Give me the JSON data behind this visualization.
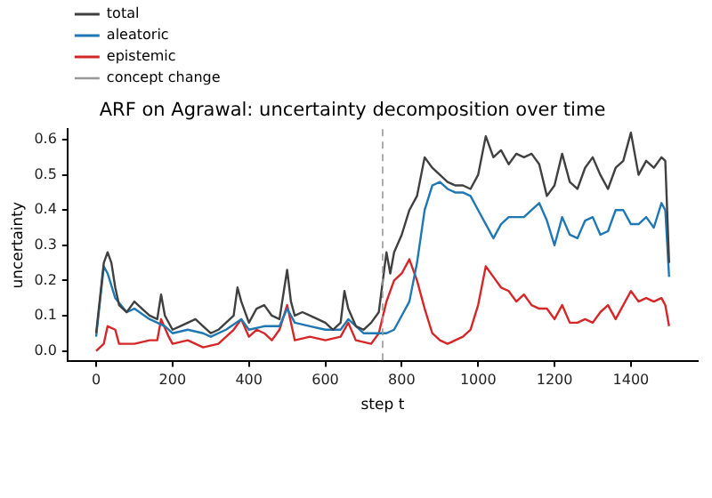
{
  "chart_data": {
    "type": "line",
    "title": "ARF on Agrawal: uncertainty decomposition over time",
    "xlabel": "step t",
    "ylabel": "uncertainty",
    "xlim": [
      -75,
      1575
    ],
    "xticks": [
      0,
      200,
      400,
      600,
      800,
      1000,
      1200,
      1400
    ],
    "ylim": [
      -0.03,
      0.63
    ],
    "yticks": [
      {
        "value": 0,
        "label": "0.0"
      },
      {
        "value": 0.1,
        "label": "0.1"
      },
      {
        "value": 0.2,
        "label": "0.2"
      },
      {
        "value": 0.3,
        "label": "0.3"
      },
      {
        "value": 0.4,
        "label": "0.4"
      },
      {
        "value": 0.5,
        "label": "0.5"
      },
      {
        "value": 0.6,
        "label": "0.6"
      }
    ],
    "grid": false,
    "legend": "top left",
    "marker": "none",
    "ref_lines": [
      {
        "axis": "x",
        "value": 750,
        "label": "concept change",
        "color": "#999999",
        "line_style": "dashed"
      }
    ],
    "series": [
      {
        "name": "total",
        "color": "#404040",
        "x": [
          0,
          10,
          20,
          30,
          40,
          50,
          60,
          80,
          100,
          120,
          140,
          160,
          170,
          180,
          200,
          220,
          240,
          260,
          280,
          300,
          320,
          340,
          360,
          370,
          380,
          400,
          420,
          440,
          460,
          480,
          500,
          510,
          520,
          540,
          560,
          580,
          600,
          620,
          640,
          650,
          660,
          680,
          700,
          720,
          740,
          760,
          770,
          780,
          800,
          820,
          840,
          860,
          880,
          900,
          920,
          940,
          960,
          980,
          1000,
          1020,
          1040,
          1060,
          1080,
          1100,
          1120,
          1140,
          1160,
          1180,
          1200,
          1220,
          1240,
          1260,
          1280,
          1300,
          1320,
          1340,
          1360,
          1380,
          1400,
          1420,
          1440,
          1460,
          1480,
          1490,
          1500
        ],
        "values": [
          0.05,
          0.15,
          0.25,
          0.28,
          0.25,
          0.18,
          0.13,
          0.11,
          0.14,
          0.12,
          0.1,
          0.09,
          0.16,
          0.1,
          0.06,
          0.07,
          0.08,
          0.09,
          0.07,
          0.05,
          0.06,
          0.08,
          0.1,
          0.18,
          0.14,
          0.08,
          0.12,
          0.13,
          0.1,
          0.09,
          0.23,
          0.14,
          0.1,
          0.11,
          0.1,
          0.09,
          0.08,
          0.06,
          0.08,
          0.17,
          0.12,
          0.07,
          0.06,
          0.08,
          0.11,
          0.28,
          0.22,
          0.28,
          0.33,
          0.4,
          0.44,
          0.55,
          0.52,
          0.5,
          0.48,
          0.47,
          0.47,
          0.46,
          0.5,
          0.61,
          0.55,
          0.57,
          0.53,
          0.56,
          0.55,
          0.56,
          0.53,
          0.44,
          0.47,
          0.56,
          0.48,
          0.46,
          0.52,
          0.55,
          0.5,
          0.46,
          0.52,
          0.54,
          0.62,
          0.5,
          0.54,
          0.52,
          0.55,
          0.54,
          0.25
        ]
      },
      {
        "name": "aleatoric",
        "color": "#1f77b4",
        "x": [
          0,
          20,
          30,
          50,
          80,
          100,
          140,
          180,
          200,
          240,
          280,
          300,
          340,
          380,
          400,
          440,
          480,
          500,
          520,
          560,
          600,
          640,
          660,
          700,
          740,
          760,
          780,
          800,
          820,
          840,
          860,
          880,
          900,
          920,
          940,
          960,
          980,
          1000,
          1020,
          1040,
          1060,
          1080,
          1100,
          1120,
          1140,
          1160,
          1180,
          1200,
          1220,
          1240,
          1260,
          1280,
          1300,
          1320,
          1340,
          1360,
          1380,
          1400,
          1420,
          1440,
          1460,
          1480,
          1490,
          1500
        ],
        "values": [
          0.04,
          0.24,
          0.22,
          0.15,
          0.11,
          0.12,
          0.09,
          0.07,
          0.05,
          0.06,
          0.05,
          0.04,
          0.06,
          0.09,
          0.06,
          0.07,
          0.07,
          0.12,
          0.08,
          0.07,
          0.06,
          0.06,
          0.09,
          0.05,
          0.05,
          0.05,
          0.06,
          0.1,
          0.14,
          0.25,
          0.4,
          0.47,
          0.48,
          0.46,
          0.45,
          0.45,
          0.44,
          0.4,
          0.36,
          0.32,
          0.36,
          0.38,
          0.38,
          0.38,
          0.4,
          0.42,
          0.37,
          0.3,
          0.38,
          0.33,
          0.32,
          0.37,
          0.38,
          0.33,
          0.34,
          0.4,
          0.4,
          0.36,
          0.36,
          0.38,
          0.35,
          0.42,
          0.4,
          0.21
        ]
      },
      {
        "name": "epistemic",
        "color": "#d62728",
        "x": [
          0,
          20,
          30,
          50,
          60,
          100,
          140,
          160,
          170,
          190,
          200,
          240,
          280,
          320,
          360,
          380,
          400,
          420,
          440,
          460,
          480,
          500,
          510,
          520,
          560,
          600,
          640,
          660,
          680,
          720,
          740,
          760,
          780,
          800,
          820,
          840,
          860,
          880,
          900,
          920,
          940,
          960,
          980,
          1000,
          1020,
          1040,
          1060,
          1080,
          1100,
          1120,
          1140,
          1160,
          1180,
          1200,
          1220,
          1240,
          1260,
          1280,
          1300,
          1320,
          1340,
          1360,
          1380,
          1400,
          1420,
          1440,
          1460,
          1480,
          1490,
          1500
        ],
        "values": [
          0.0,
          0.02,
          0.07,
          0.06,
          0.02,
          0.02,
          0.03,
          0.03,
          0.09,
          0.04,
          0.02,
          0.03,
          0.01,
          0.02,
          0.06,
          0.09,
          0.04,
          0.06,
          0.05,
          0.03,
          0.06,
          0.13,
          0.08,
          0.03,
          0.04,
          0.03,
          0.04,
          0.08,
          0.03,
          0.02,
          0.05,
          0.14,
          0.2,
          0.22,
          0.26,
          0.2,
          0.12,
          0.05,
          0.03,
          0.02,
          0.03,
          0.04,
          0.06,
          0.13,
          0.24,
          0.21,
          0.18,
          0.17,
          0.14,
          0.16,
          0.13,
          0.12,
          0.12,
          0.09,
          0.13,
          0.08,
          0.08,
          0.09,
          0.08,
          0.11,
          0.13,
          0.09,
          0.13,
          0.17,
          0.14,
          0.15,
          0.14,
          0.15,
          0.13,
          0.07
        ]
      }
    ]
  }
}
